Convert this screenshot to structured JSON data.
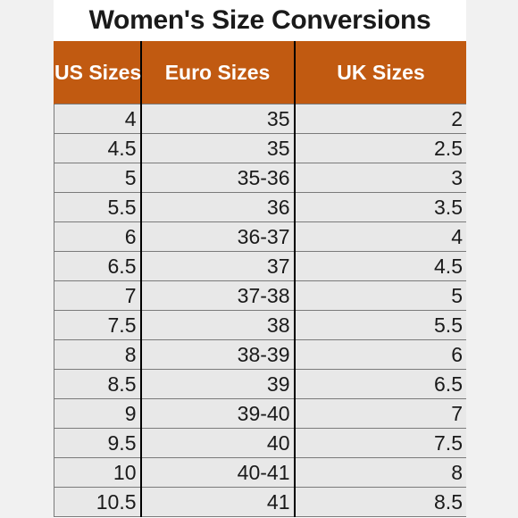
{
  "title": "Women's Size Conversions",
  "colors": {
    "header_bg": "#c15a11",
    "header_text": "#ffffff",
    "cell_bg": "#e8e8e8",
    "divider": "#000000"
  },
  "table": {
    "headers": [
      "US Sizes",
      "Euro Sizes",
      "UK Sizes"
    ],
    "rows": [
      [
        "4",
        "35",
        "2"
      ],
      [
        "4.5",
        "35",
        "2.5"
      ],
      [
        "5",
        "35-36",
        "3"
      ],
      [
        "5.5",
        "36",
        "3.5"
      ],
      [
        "6",
        "36-37",
        "4"
      ],
      [
        "6.5",
        "37",
        "4.5"
      ],
      [
        "7",
        "37-38",
        "5"
      ],
      [
        "7.5",
        "38",
        "5.5"
      ],
      [
        "8",
        "38-39",
        "6"
      ],
      [
        "8.5",
        "39",
        "6.5"
      ],
      [
        "9",
        "39-40",
        "7"
      ],
      [
        "9.5",
        "40",
        "7.5"
      ],
      [
        "10",
        "40-41",
        "8"
      ],
      [
        "10.5",
        "41",
        "8.5"
      ]
    ]
  }
}
